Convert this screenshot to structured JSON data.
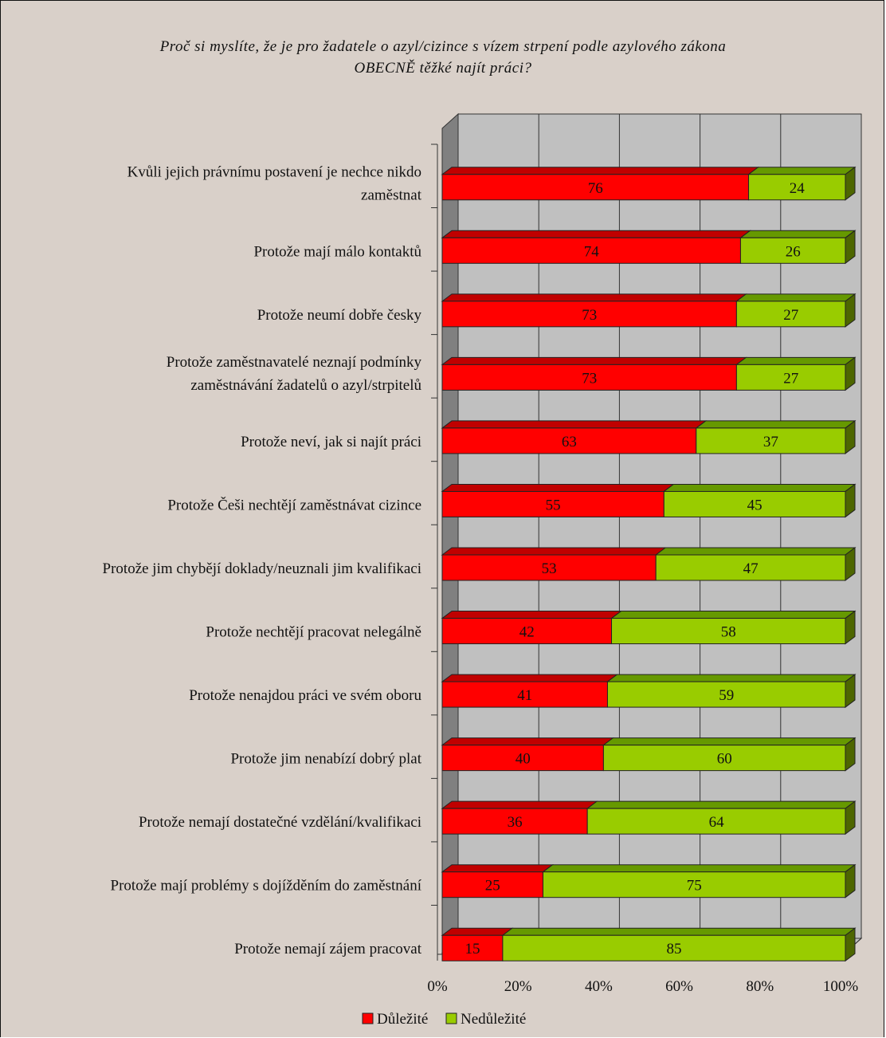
{
  "chart_data": {
    "type": "bar",
    "stacked": true,
    "orientation": "horizontal",
    "percent_stacked": true,
    "three_d": true,
    "title_lines": [
      "Proč si myslíte, že je pro žadatele o azyl/cizince s vízem strpení podle azylového zákona",
      "OBECNĚ těžké najít práci?"
    ],
    "categories": [
      [
        "Kvůli jejich právnímu postavení je nechce nikdo",
        "zaměstnat"
      ],
      [
        "Protože mají málo kontaktů"
      ],
      [
        "Protože neumí dobře česky"
      ],
      [
        "Protože zaměstnavatelé neznají podmínky",
        "zaměstnávání žadatelů o azyl/strpitelů"
      ],
      [
        "Protože neví, jak si najít práci"
      ],
      [
        "Protože Češi nechtějí zaměstnávat cizince"
      ],
      [
        "Protože jim chybějí doklady/neuznali jim kvalifikaci"
      ],
      [
        "Protože nechtějí pracovat nelegálně"
      ],
      [
        "Protože nenajdou práci ve svém oboru"
      ],
      [
        "Protože jim nenabízí dobrý plat"
      ],
      [
        "Protože nemají dostatečné vzdělání/kvalifikaci"
      ],
      [
        "Protože mají problémy s dojížděním do zaměstnání"
      ],
      [
        "Protože nemají zájem pracovat"
      ]
    ],
    "series": [
      {
        "name": "Důležité",
        "color": "#ff0000",
        "top_color": "#c00000",
        "side_color": "#800000",
        "values": [
          76,
          74,
          73,
          73,
          63,
          55,
          53,
          42,
          41,
          40,
          36,
          25,
          15
        ]
      },
      {
        "name": "Nedůležité",
        "color": "#99cc00",
        "top_color": "#669900",
        "side_color": "#4d6600",
        "values": [
          24,
          26,
          27,
          27,
          37,
          45,
          47,
          58,
          59,
          60,
          64,
          75,
          85
        ]
      }
    ],
    "value_labels": [
      [
        "76",
        "24"
      ],
      [
        "74",
        "26"
      ],
      [
        "73",
        "27"
      ],
      [
        "73",
        "27"
      ],
      [
        "63",
        "37"
      ],
      [
        "55",
        "45"
      ],
      [
        "53",
        "47"
      ],
      [
        "42",
        "58"
      ],
      [
        "41",
        "59"
      ],
      [
        "40",
        "60"
      ],
      [
        "36",
        "64"
      ],
      [
        "25",
        "75"
      ],
      [
        "15",
        "85"
      ]
    ],
    "x_ticks": [
      0,
      20,
      40,
      60,
      80,
      100
    ],
    "x_tick_labels": [
      "0%",
      "20%",
      "40%",
      "60%",
      "80%",
      "100%"
    ],
    "xlim": [
      0,
      100
    ],
    "grid": true,
    "legend_position": "bottom",
    "colors": {
      "background": "#d9d0c9",
      "plot_wall": "#c0c0c0",
      "plot_side": "#808080",
      "plot_floor": "#c0c0c0"
    }
  }
}
